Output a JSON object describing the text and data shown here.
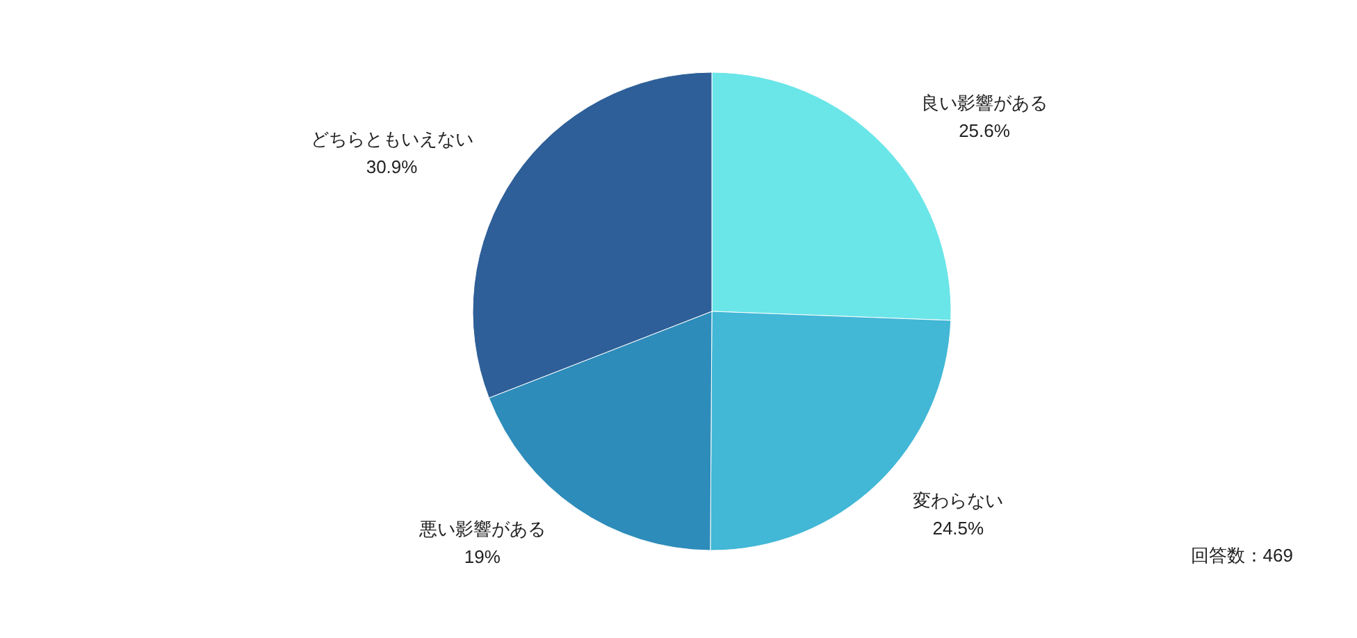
{
  "chart_data": {
    "type": "pie",
    "categories": [
      "良い影響がある",
      "変わらない",
      "悪い影響がある",
      "どちらともいえない"
    ],
    "values": [
      25.6,
      24.5,
      19,
      30.9
    ],
    "colors": [
      "#6ae5e8",
      "#42b7d6",
      "#2d8cba",
      "#2e5f98"
    ],
    "value_labels": [
      "25.6%",
      "24.5%",
      "19%",
      "30.9%"
    ],
    "annotations": [
      "回答数：469"
    ]
  }
}
